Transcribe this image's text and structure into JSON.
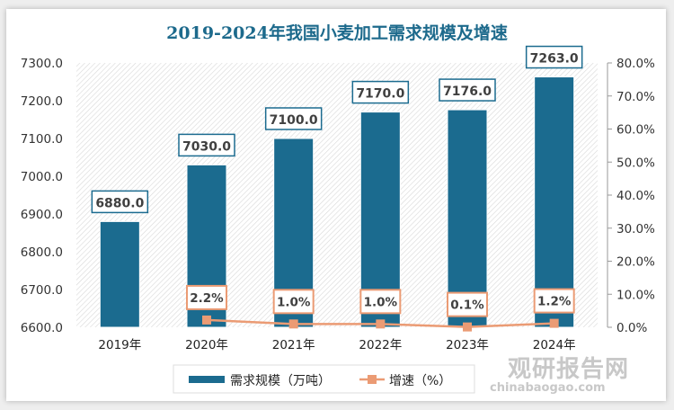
{
  "chart_data": {
    "type": "bar+line",
    "title": "2019-2024年我国小麦加工需求规模及增速",
    "categories": [
      "2019年",
      "2020年",
      "2021年",
      "2022年",
      "2023年",
      "2024年"
    ],
    "series": [
      {
        "name": "需求规模（万吨）",
        "type": "bar",
        "axis": "left",
        "values": [
          6880.0,
          7030.0,
          7100.0,
          7170.0,
          7176.0,
          7263.0
        ],
        "labels": [
          "6880.0",
          "7030.0",
          "7100.0",
          "7170.0",
          "7176.0",
          "7263.0"
        ],
        "color": "#1b6b8f"
      },
      {
        "name": "增速（%）",
        "type": "line",
        "axis": "right",
        "values": [
          null,
          2.2,
          1.0,
          1.0,
          0.1,
          1.2
        ],
        "labels": [
          "",
          "2.2%",
          "1.0%",
          "1.0%",
          "0.1%",
          "1.2%"
        ],
        "color": "#eb9b74"
      }
    ],
    "left_axis": {
      "range": [
        6600,
        7300
      ],
      "ticks": [
        "6600.0",
        "6700.0",
        "6800.0",
        "6900.0",
        "7000.0",
        "7100.0",
        "7200.0",
        "7300.0"
      ]
    },
    "right_axis": {
      "range": [
        0,
        80
      ],
      "ticks": [
        "0.0%",
        "10.0%",
        "20.0%",
        "30.0%",
        "40.0%",
        "50.0%",
        "60.0%",
        "70.0%",
        "80.0%"
      ]
    },
    "legend": "bottom-left",
    "grid": false
  },
  "watermark": {
    "cn": "观研报告网",
    "en": "chinabaogao.com"
  }
}
